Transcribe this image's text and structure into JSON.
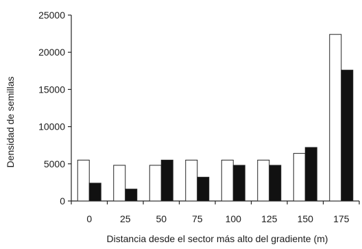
{
  "chart_data": {
    "type": "bar",
    "title": "",
    "xlabel": "Distancia desde el sector más alto del gradiente (m)",
    "ylabel": "Densidad de semillas",
    "categories": [
      "0",
      "25",
      "50",
      "75",
      "100",
      "125",
      "150",
      "175"
    ],
    "series": [
      {
        "values": [
          5500,
          4800,
          4800,
          5500,
          5500,
          5500,
          6400,
          22400
        ],
        "fill": "#ffffff"
      },
      {
        "values": [
          2400,
          1600,
          5500,
          3200,
          4800,
          4800,
          7200,
          17600
        ],
        "fill": "#111111"
      }
    ],
    "ylim": [
      0,
      25000
    ],
    "yticks": [
      "0",
      "5000",
      "10000",
      "15000",
      "20000",
      "25000"
    ],
    "grid": false,
    "legend": "none"
  },
  "colors": {
    "axis": "#222222",
    "bar_outline": "#222222"
  }
}
